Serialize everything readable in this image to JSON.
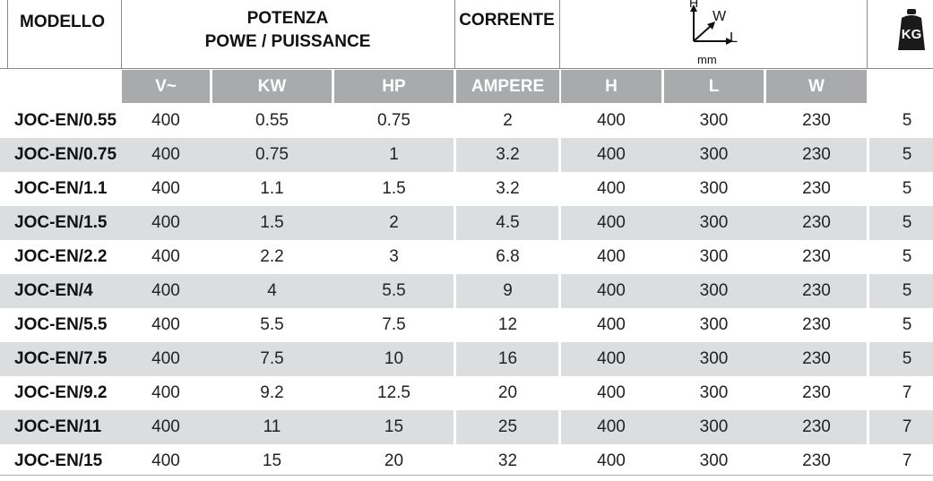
{
  "header": {
    "model": "MODELLO",
    "power_line1": "POTENZA",
    "power_line2": "POWE / PUISSANCE",
    "current": "CORRENTE",
    "dims_h": "H",
    "dims_w": "W",
    "dims_l": "L",
    "dims_unit": "mm",
    "weight": "KG"
  },
  "subheader": {
    "volt": "V~",
    "kw": "KW",
    "hp": "HP",
    "ampere": "AMPERE",
    "h": "H",
    "l": "L",
    "w": "W"
  },
  "rows": [
    {
      "model": "JOC-EN/0.55",
      "v": "400",
      "kw": "0.55",
      "hp": "0.75",
      "a": "2",
      "h": "400",
      "l": "300",
      "w": "230",
      "kg": "5"
    },
    {
      "model": "JOC-EN/0.75",
      "v": "400",
      "kw": "0.75",
      "hp": "1",
      "a": "3.2",
      "h": "400",
      "l": "300",
      "w": "230",
      "kg": "5"
    },
    {
      "model": "JOC-EN/1.1",
      "v": "400",
      "kw": "1.1",
      "hp": "1.5",
      "a": "3.2",
      "h": "400",
      "l": "300",
      "w": "230",
      "kg": "5"
    },
    {
      "model": "JOC-EN/1.5",
      "v": "400",
      "kw": "1.5",
      "hp": "2",
      "a": "4.5",
      "h": "400",
      "l": "300",
      "w": "230",
      "kg": "5"
    },
    {
      "model": "JOC-EN/2.2",
      "v": "400",
      "kw": "2.2",
      "hp": "3",
      "a": "6.8",
      "h": "400",
      "l": "300",
      "w": "230",
      "kg": "5"
    },
    {
      "model": "JOC-EN/4",
      "v": "400",
      "kw": "4",
      "hp": "5.5",
      "a": "9",
      "h": "400",
      "l": "300",
      "w": "230",
      "kg": "5"
    },
    {
      "model": "JOC-EN/5.5",
      "v": "400",
      "kw": "5.5",
      "hp": "7.5",
      "a": "12",
      "h": "400",
      "l": "300",
      "w": "230",
      "kg": "5"
    },
    {
      "model": "JOC-EN/7.5",
      "v": "400",
      "kw": "7.5",
      "hp": "10",
      "a": "16",
      "h": "400",
      "l": "300",
      "w": "230",
      "kg": "5"
    },
    {
      "model": "JOC-EN/9.2",
      "v": "400",
      "kw": "9.2",
      "hp": "12.5",
      "a": "20",
      "h": "400",
      "l": "300",
      "w": "230",
      "kg": "7"
    },
    {
      "model": "JOC-EN/11",
      "v": "400",
      "kw": "11",
      "hp": "15",
      "a": "25",
      "h": "400",
      "l": "300",
      "w": "230",
      "kg": "7"
    },
    {
      "model": "JOC-EN/15",
      "v": "400",
      "kw": "15",
      "hp": "20",
      "a": "32",
      "h": "400",
      "l": "300",
      "w": "230",
      "kg": "7"
    }
  ],
  "colors": {
    "subheader_bg": "#a9aaac",
    "stripe_bg": "#dcdddf",
    "rule": "#8a8a8a"
  }
}
